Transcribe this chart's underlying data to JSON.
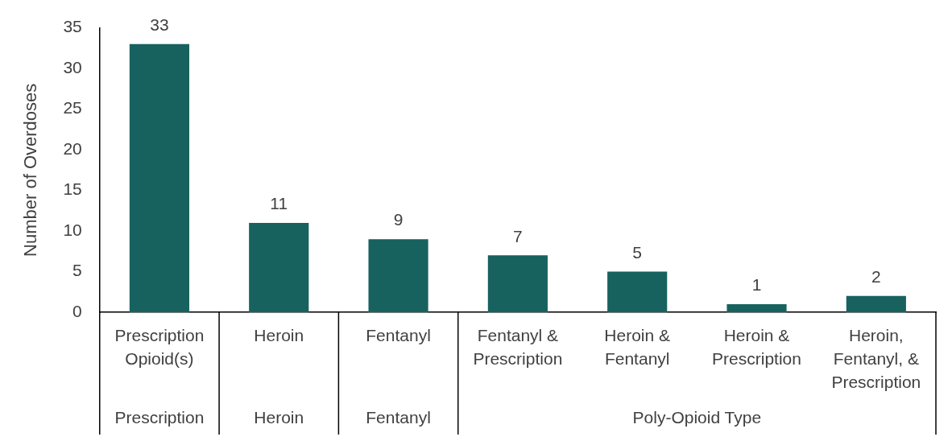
{
  "chart_data": {
    "type": "bar",
    "ylabel": "Number of Overdoses",
    "categories": [
      "Prescription Opioid(s)",
      "Heroin",
      "Fentanyl",
      "Fentanyl & Prescription",
      "Heroin & Fentanyl",
      "Heroin & Prescription",
      "Heroin, Fentanyl, & Prescription"
    ],
    "values": [
      33,
      11,
      9,
      7,
      5,
      1,
      2
    ],
    "color": "#17625f",
    "ylim": [
      0,
      35
    ],
    "yticks": [
      0,
      5,
      10,
      15,
      20,
      25,
      30,
      35
    ],
    "grid": false,
    "legend": false,
    "data_labels": true,
    "annotations": [
      "Prescription",
      "Heroin",
      "Fentanyl",
      "Poly-Opioid Type"
    ]
  }
}
